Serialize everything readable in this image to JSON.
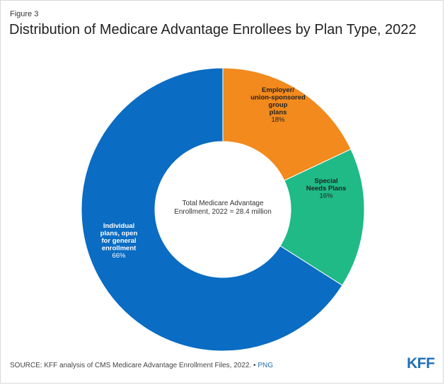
{
  "figure_label": "Figure 3",
  "title": "Distribution of Medicare Advantage Enrollees by Plan Type, 2022",
  "chart_data": {
    "type": "pie",
    "donut": true,
    "center_label_lines": [
      "Total Medicare Advantage",
      "Enrollment, 2022 = 28.4 million"
    ],
    "slices": [
      {
        "label_lines": [
          "Employer/",
          "union-sponsored",
          "group",
          "plans"
        ],
        "value": 18,
        "value_label": "18%",
        "color": "#f28a1d",
        "text_color": "#222222"
      },
      {
        "label_lines": [
          "Special",
          "Needs Plans"
        ],
        "value": 16,
        "value_label": "16%",
        "color": "#1fba86",
        "text_color": "#222222"
      },
      {
        "label_lines": [
          "Individual",
          "plans, open",
          "for general",
          "enrollment"
        ],
        "value": 66,
        "value_label": "66%",
        "color": "#0a6cc2",
        "text_color": "#ffffff"
      }
    ]
  },
  "source": {
    "text": "SOURCE: KFF analysis of CMS Medicare Advantage Enrollment Files, 2022.",
    "separator": "•",
    "png_link": "PNG"
  },
  "logo": "KFF",
  "colors": {
    "brand": "#1f6fb5"
  }
}
